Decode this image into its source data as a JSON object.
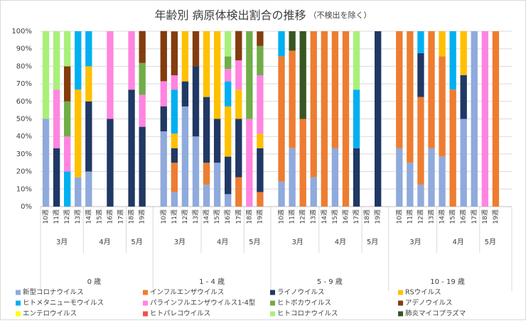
{
  "chart_data": {
    "type": "bar",
    "stacked": true,
    "title": "年齢別 病原体検出割合の推移",
    "subtitle": "（不検出を除く）",
    "ylim": [
      0,
      100
    ],
    "yticks": [
      {
        "value": 0,
        "label": "0%"
      },
      {
        "value": 10,
        "label": "10%"
      },
      {
        "value": 20,
        "label": "20%"
      },
      {
        "value": 30,
        "label": "30%"
      },
      {
        "value": 40,
        "label": "40%"
      },
      {
        "value": 50,
        "label": "50%"
      },
      {
        "value": 60,
        "label": "60%"
      },
      {
        "value": 70,
        "label": "70%"
      },
      {
        "value": 80,
        "label": "80%"
      },
      {
        "value": 90,
        "label": "90%"
      },
      {
        "value": 100,
        "label": "100%"
      }
    ],
    "grid": true,
    "groups": [
      {
        "name": "0 歳",
        "months": [
          {
            "name": "3月",
            "weeks": [
              "10週",
              "11週",
              "12週",
              "13週"
            ]
          },
          {
            "name": "4月",
            "weeks": [
              "14週",
              "15週",
              "16週",
              "17週"
            ]
          },
          {
            "name": "5月",
            "weeks": [
              "18週",
              "19週"
            ]
          }
        ]
      },
      {
        "name": "1 - 4 歳",
        "months": [
          {
            "name": "3月",
            "weeks": [
              "10週",
              "11週",
              "12週",
              "13週"
            ]
          },
          {
            "name": "4月",
            "weeks": [
              "14週",
              "15週",
              "16週",
              "17週"
            ]
          },
          {
            "name": "5月",
            "weeks": [
              "18週",
              "19週"
            ]
          }
        ]
      },
      {
        "name": "5 - 9 歳",
        "months": [
          {
            "name": "3月",
            "weeks": [
              "10週",
              "11週",
              "12週",
              "13週"
            ]
          },
          {
            "name": "4月",
            "weeks": [
              "14週",
              "15週",
              "16週",
              "17週"
            ]
          },
          {
            "name": "5月",
            "weeks": [
              "18週",
              "19週"
            ]
          }
        ]
      },
      {
        "name": "10 - 19 歳",
        "months": [
          {
            "name": "3月",
            "weeks": [
              "10週",
              "11週",
              "12週",
              "13週"
            ]
          },
          {
            "name": "4月",
            "weeks": [
              "14週",
              "15週",
              "16週",
              "17週"
            ]
          },
          {
            "name": "5月",
            "weeks": [
              "18週",
              "19週"
            ]
          }
        ]
      }
    ],
    "series": [
      {
        "name": "新型コロナウイルス",
        "color": "#8faadc",
        "values": [
          50,
          0,
          0,
          16.7,
          20,
          0,
          0,
          0,
          0,
          0,
          42.9,
          8.3,
          57.1,
          40,
          12.5,
          25,
          7.1,
          0,
          0,
          0,
          14.3,
          33.3,
          0,
          16.7,
          0,
          33.3,
          0,
          0,
          0,
          0,
          33.3,
          25,
          12.5,
          33.3,
          28.6,
          0,
          50,
          100,
          0,
          0
        ]
      },
      {
        "name": "インフルエンザウイルス",
        "color": "#ed7d31",
        "values": [
          0,
          0,
          0,
          0,
          0,
          0,
          0,
          0,
          0,
          0,
          0,
          16.7,
          0,
          0,
          12.5,
          0,
          0,
          16.7,
          0,
          8.3,
          71.4,
          55.6,
          50,
          83.3,
          100,
          66.7,
          100,
          0,
          0,
          0,
          66.7,
          75,
          50,
          66.7,
          57.1,
          66.7,
          0,
          0,
          0,
          100
        ]
      },
      {
        "name": "ライノウイルス",
        "color": "#203864",
        "values": [
          0,
          33.3,
          0,
          0,
          40,
          0,
          50,
          0,
          66.7,
          45.5,
          14.3,
          8.3,
          14.3,
          40,
          37.5,
          25,
          21.4,
          33.3,
          0,
          25,
          0,
          0,
          0,
          0,
          0,
          0,
          0,
          33.3,
          0,
          100,
          0,
          0,
          25,
          0,
          0,
          0,
          25,
          0,
          0,
          0
        ]
      },
      {
        "name": "RSウイルス",
        "color": "#ffc000",
        "values": [
          0,
          0,
          0,
          50,
          20,
          0,
          0,
          0,
          0,
          0,
          0,
          8.3,
          28.6,
          0,
          37.5,
          50,
          28.6,
          16.7,
          0,
          8.3,
          0,
          0,
          0,
          0,
          0,
          0,
          0,
          0,
          0,
          0,
          0,
          0,
          0,
          0,
          14.3,
          0,
          25,
          0,
          0,
          0
        ]
      },
      {
        "name": "ヒトメタニューモウイルス",
        "color": "#00b0f0",
        "values": [
          0,
          0,
          20,
          33.3,
          20,
          0,
          0,
          0,
          0,
          0,
          0,
          25,
          0,
          0,
          0,
          0,
          14.3,
          0,
          0,
          0,
          14.3,
          0,
          0,
          0,
          0,
          0,
          0,
          33.3,
          0,
          0,
          0,
          0,
          12.5,
          0,
          0,
          33.3,
          0,
          0,
          0,
          0
        ]
      },
      {
        "name": "パラインフルエンザウイルス1-4型",
        "color": "#ff85e0",
        "values": [
          0,
          33.3,
          20,
          0,
          0,
          0,
          50,
          0,
          33.3,
          18.2,
          14.3,
          8.3,
          0,
          0,
          0,
          0,
          7.1,
          16.7,
          50,
          33.3,
          0,
          0,
          0,
          0,
          0,
          0,
          0,
          0,
          0,
          0,
          0,
          0,
          0,
          0,
          0,
          0,
          0,
          0,
          100,
          0
        ]
      },
      {
        "name": "ヒトボカウイルス",
        "color": "#70ad47",
        "values": [
          0,
          0,
          20,
          0,
          0,
          0,
          0,
          0,
          0,
          18.2,
          0,
          0,
          0,
          0,
          0,
          0,
          7.1,
          0,
          50,
          16.7,
          0,
          0,
          0,
          0,
          0,
          0,
          0,
          0,
          0,
          0,
          0,
          0,
          0,
          0,
          0,
          0,
          0,
          0,
          0,
          0
        ]
      },
      {
        "name": "アデノウイルス",
        "color": "#843c0c",
        "values": [
          0,
          0,
          20,
          0,
          0,
          0,
          0,
          0,
          0,
          18.2,
          28.6,
          25,
          0,
          20,
          0,
          0,
          0,
          16.7,
          0,
          8.3,
          0,
          0,
          0,
          0,
          0,
          0,
          0,
          0,
          0,
          0,
          0,
          0,
          0,
          0,
          0,
          0,
          0,
          0,
          0,
          0
        ]
      },
      {
        "name": "エンテロウイルス",
        "color": "#ffff00",
        "values": [
          0,
          0,
          0,
          0,
          0,
          0,
          0,
          0,
          0,
          0,
          0,
          0,
          0,
          0,
          0,
          0,
          0,
          0,
          0,
          0,
          0,
          0,
          0,
          0,
          0,
          0,
          0,
          0,
          0,
          0,
          0,
          0,
          0,
          0,
          0,
          0,
          0,
          0,
          0,
          0
        ]
      },
      {
        "name": "ヒトパレコウイルス",
        "color": "#ff4b4b",
        "values": [
          0,
          0,
          0,
          0,
          0,
          0,
          0,
          0,
          0,
          0,
          0,
          0,
          0,
          0,
          0,
          0,
          0,
          0,
          0,
          0,
          0,
          0,
          0,
          0,
          0,
          0,
          0,
          0,
          0,
          0,
          0,
          0,
          0,
          0,
          0,
          0,
          0,
          0,
          0,
          0
        ]
      },
      {
        "name": "ヒトコロナウイルス",
        "color": "#a9f07a",
        "values": [
          50,
          33.3,
          20,
          0,
          0,
          0,
          0,
          0,
          0,
          0,
          0,
          0,
          0,
          0,
          0,
          0,
          14.3,
          0,
          0,
          0,
          0,
          0,
          0,
          0,
          0,
          0,
          0,
          33.3,
          0,
          0,
          0,
          0,
          0,
          0,
          0,
          0,
          0,
          0,
          0,
          0
        ]
      },
      {
        "name": "肺炎マイコプラズマ",
        "color": "#375623",
        "values": [
          0,
          0,
          0,
          0,
          0,
          0,
          0,
          0,
          0,
          0,
          0,
          0,
          0,
          0,
          0,
          0,
          0,
          0,
          0,
          0,
          0,
          11.1,
          50,
          0,
          0,
          0,
          0,
          0,
          0,
          0,
          0,
          0,
          0,
          0,
          0,
          0,
          0,
          0,
          0,
          0
        ]
      }
    ]
  }
}
